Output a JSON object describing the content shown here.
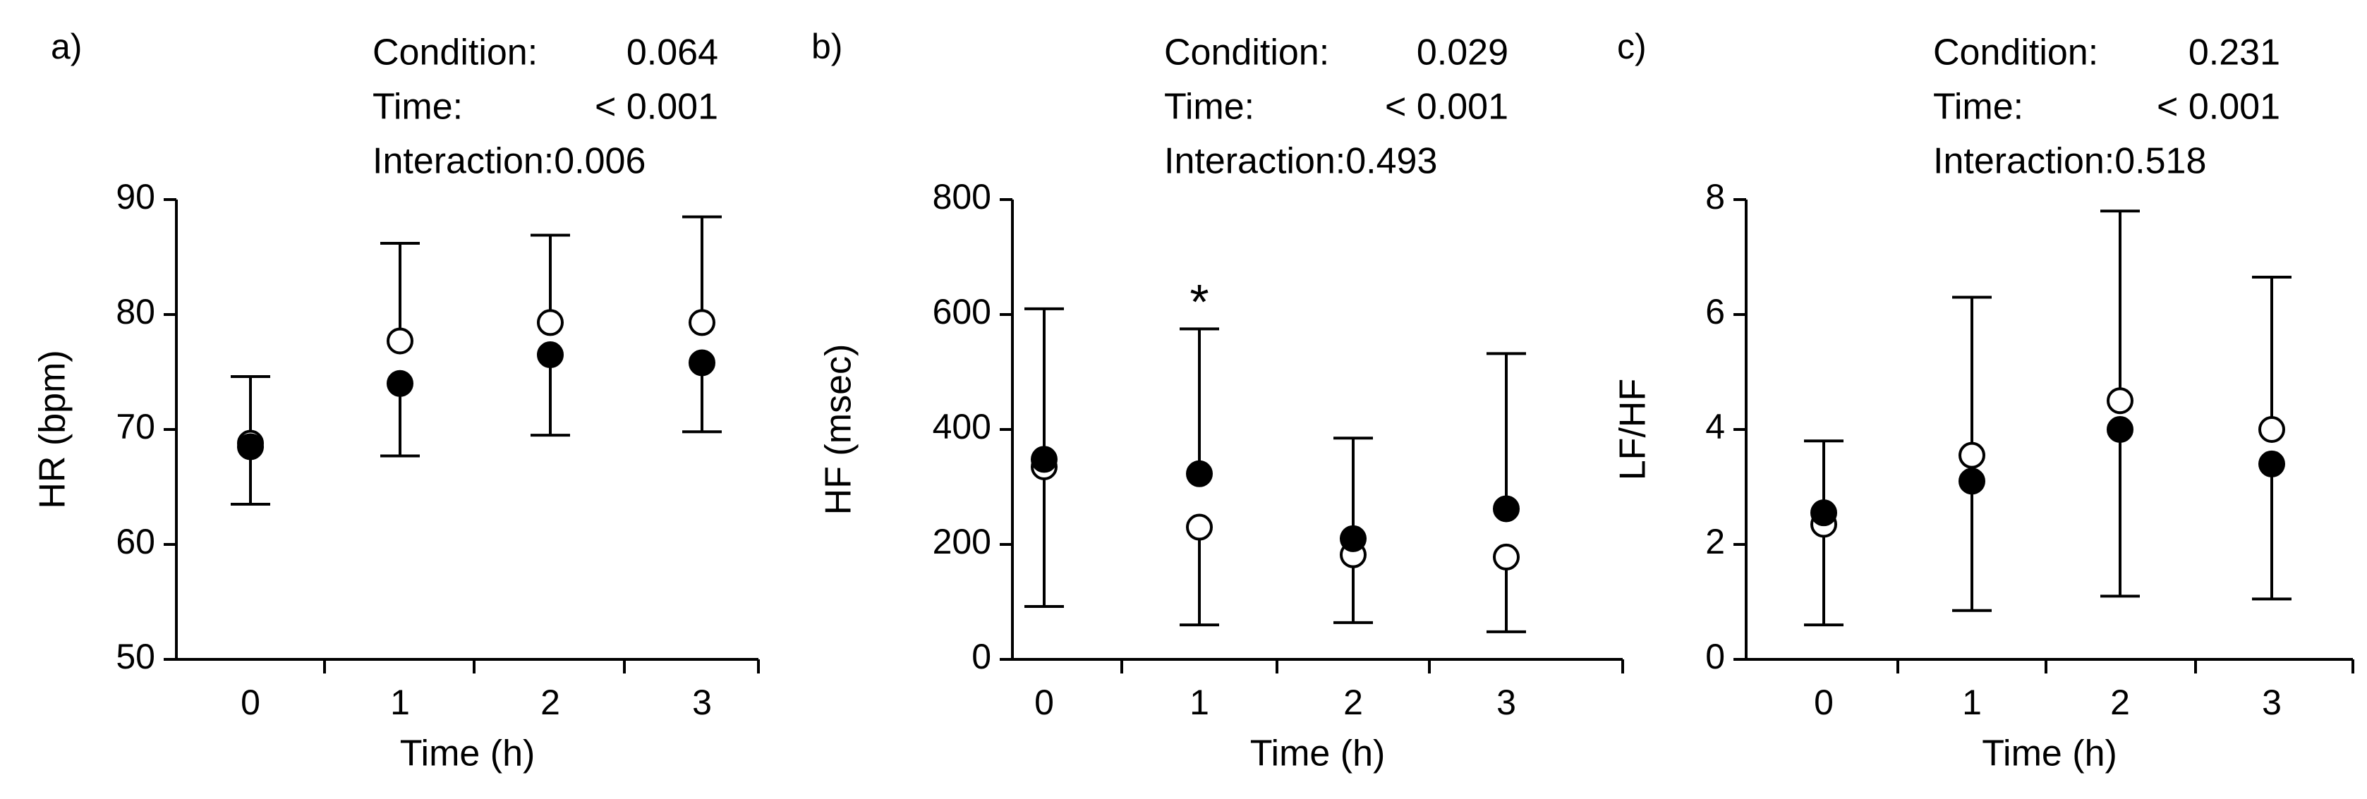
{
  "figure": {
    "colors": {
      "ink": "#000000",
      "open_fill": "#ffffff",
      "background": "#ffffff"
    },
    "legend_note": "filled circle = one condition, open circle = other condition (no legend shown)"
  },
  "chart_data": [
    {
      "type": "scatter",
      "panel_label": "a)",
      "stats": [
        {
          "label": "Condition:",
          "value": "0.064"
        },
        {
          "label": "Time:",
          "value": "< 0.001"
        },
        {
          "label": "Interaction:",
          "value": "0.006"
        }
      ],
      "xlabel": "Time (h)",
      "ylabel": "HR (bpm)",
      "categories": [
        "0",
        "1",
        "2",
        "3"
      ],
      "ylim": [
        50,
        90
      ],
      "yticks": [
        50,
        60,
        70,
        80,
        90
      ],
      "grid": false,
      "series": [
        {
          "name": "filled",
          "marker": "filled",
          "values": [
            68.5,
            74.0,
            76.5,
            75.8
          ],
          "errors": [
            5.0,
            6.3,
            7.0,
            6.0
          ],
          "error_dir": "down"
        },
        {
          "name": "open",
          "marker": "open",
          "values": [
            68.8,
            77.7,
            79.3,
            79.3
          ],
          "errors": [
            5.8,
            8.5,
            7.6,
            9.2
          ],
          "error_dir": "up"
        }
      ],
      "annotations": []
    },
    {
      "type": "scatter",
      "panel_label": "b)",
      "stats": [
        {
          "label": "Condition:",
          "value": "0.029"
        },
        {
          "label": "Time:",
          "value": "< 0.001"
        },
        {
          "label": "Interaction:",
          "value": "0.493"
        }
      ],
      "xlabel": "Time (h)",
      "ylabel": "HF (msec)",
      "categories": [
        "0",
        "1",
        "2",
        "3"
      ],
      "ylim": [
        0,
        800
      ],
      "yticks": [
        0,
        200,
        400,
        600,
        800
      ],
      "grid": false,
      "series": [
        {
          "name": "filled",
          "marker": "filled",
          "values": [
            348,
            323,
            210,
            262
          ],
          "errors": [
            262,
            252,
            175,
            270
          ],
          "error_dir": "up"
        },
        {
          "name": "open",
          "marker": "open",
          "values": [
            335,
            230,
            182,
            178
          ],
          "errors": [
            243,
            170,
            118,
            130
          ],
          "error_dir": "down"
        }
      ],
      "annotations": [
        {
          "category": "1",
          "text": "*",
          "y": 640
        }
      ]
    },
    {
      "type": "scatter",
      "panel_label": "c)",
      "stats": [
        {
          "label": "Condition:",
          "value": "0.231"
        },
        {
          "label": "Time:",
          "value": "< 0.001"
        },
        {
          "label": "Interaction:",
          "value": "0.518"
        }
      ],
      "xlabel": "Time (h)",
      "ylabel": "LF/HF",
      "categories": [
        "0",
        "1",
        "2",
        "3"
      ],
      "ylim": [
        0,
        8
      ],
      "yticks": [
        0,
        2,
        4,
        6,
        8
      ],
      "grid": false,
      "series": [
        {
          "name": "filled",
          "marker": "filled",
          "values": [
            2.55,
            3.1,
            4.0,
            3.4
          ],
          "errors": [
            1.95,
            2.25,
            2.9,
            2.35
          ],
          "error_dir": "down"
        },
        {
          "name": "open",
          "marker": "open",
          "values": [
            2.35,
            3.55,
            4.5,
            4.0
          ],
          "errors": [
            1.45,
            2.75,
            3.3,
            2.65
          ],
          "error_dir": "up"
        }
      ],
      "annotations": []
    }
  ]
}
